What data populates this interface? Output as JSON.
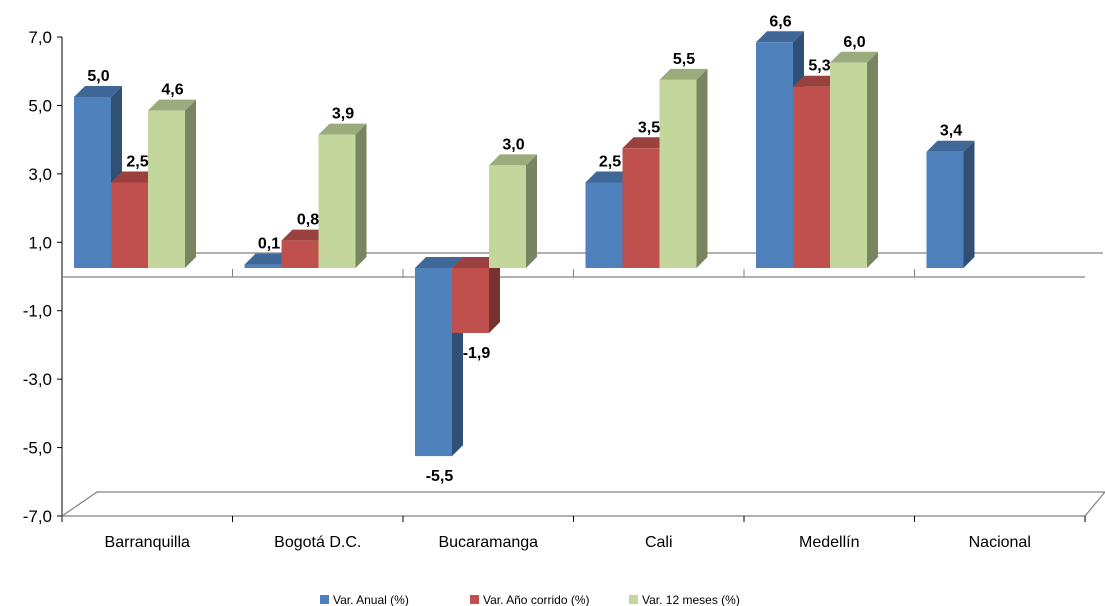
{
  "chart_data": {
    "type": "bar",
    "title": "",
    "xlabel": "",
    "ylabel": "",
    "ylim": [
      -7,
      7
    ],
    "yticks": [
      "7,0",
      "5,0",
      "3,0",
      "1,0",
      "-1,0",
      "-3,0",
      "-5,0",
      "-7,0"
    ],
    "categories": [
      "Barranquilla",
      "Bogotá D.C.",
      "Bucaramanga",
      "Cali",
      "Medellín",
      "Nacional"
    ],
    "series": [
      {
        "name": "Var. Anual (%)",
        "color": "#4F81BD",
        "values": [
          5.0,
          0.1,
          -5.5,
          2.5,
          6.6,
          3.4
        ],
        "labels": [
          "5,0",
          "0,1",
          "-5,5",
          "2,5",
          "6,6",
          "3,4"
        ]
      },
      {
        "name": "Var. Año corrido (%)",
        "color": "#C0504D",
        "values": [
          2.5,
          0.8,
          -1.9,
          3.5,
          5.3,
          null
        ],
        "labels": [
          "2,5",
          "0,8",
          "-1,9",
          "3,5",
          "5,3",
          null
        ]
      },
      {
        "name": "Var. 12 meses (%)",
        "color": "#C3D69B",
        "values": [
          4.6,
          3.9,
          3.0,
          5.5,
          6.0,
          null
        ],
        "labels": [
          "4,6",
          "3,9",
          "3,0",
          "5,5",
          "6,0",
          null
        ]
      }
    ],
    "legend_position": "bottom",
    "grid": false,
    "style": "3d-clustered-column"
  }
}
